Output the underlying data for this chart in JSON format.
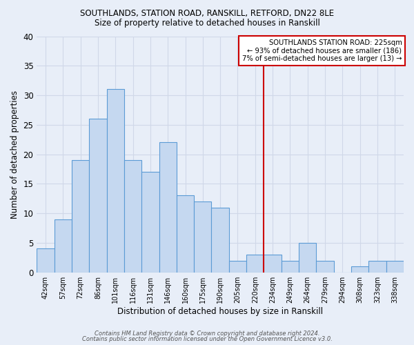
{
  "title": "SOUTHLANDS, STATION ROAD, RANSKILL, RETFORD, DN22 8LE",
  "subtitle": "Size of property relative to detached houses in Ranskill",
  "xlabel": "Distribution of detached houses by size in Ranskill",
  "ylabel": "Number of detached properties",
  "categories": [
    "42sqm",
    "57sqm",
    "72sqm",
    "86sqm",
    "101sqm",
    "116sqm",
    "131sqm",
    "146sqm",
    "160sqm",
    "175sqm",
    "190sqm",
    "205sqm",
    "220sqm",
    "234sqm",
    "249sqm",
    "264sqm",
    "279sqm",
    "294sqm",
    "308sqm",
    "323sqm",
    "338sqm"
  ],
  "values": [
    4,
    9,
    19,
    26,
    31,
    19,
    17,
    22,
    13,
    12,
    11,
    2,
    3,
    3,
    2,
    5,
    2,
    0,
    1,
    2,
    2
  ],
  "bar_color": "#c5d8f0",
  "bar_edge_color": "#5b9bd5",
  "bar_edge_width": 0.8,
  "vline_x": 12.5,
  "vline_color": "#cc0000",
  "annotation_text": "SOUTHLANDS STATION ROAD: 225sqm\n← 93% of detached houses are smaller (186)\n7% of semi-detached houses are larger (13) →",
  "annotation_box_color": "#ffffff",
  "annotation_box_edge_color": "#cc0000",
  "grid_color": "#d0d8e8",
  "bg_color": "#e8eef8",
  "ylim": [
    0,
    40
  ],
  "yticks": [
    0,
    5,
    10,
    15,
    20,
    25,
    30,
    35,
    40
  ],
  "footer_line1": "Contains HM Land Registry data © Crown copyright and database right 2024.",
  "footer_line2": "Contains public sector information licensed under the Open Government Licence v3.0."
}
